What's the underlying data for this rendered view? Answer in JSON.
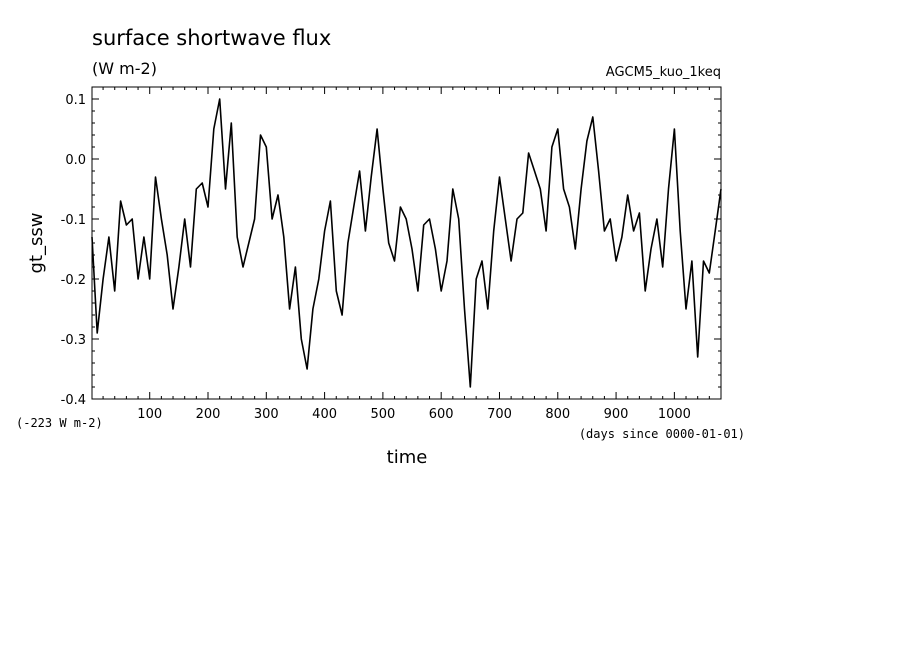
{
  "chart_data": {
    "type": "line",
    "title": "surface shortwave flux",
    "units_label": "(W m-2)",
    "dataset_label": "AGCM5_kuo_1keq",
    "offset_label": "(-223 W m-2)",
    "time_origin_label": "(days since 0000-01-01)",
    "xlabel": "time",
    "ylabel": "gt_ssw",
    "xlim": [
      1,
      1080
    ],
    "ylim": [
      -0.4,
      0.12
    ],
    "xticks": [
      100,
      200,
      300,
      400,
      500,
      600,
      700,
      800,
      900,
      1000
    ],
    "yticks": [
      -0.4,
      -0.3,
      -0.2,
      -0.1,
      0.0,
      0.1
    ],
    "ytick_labels": [
      "-0.4",
      "-0.3",
      "-0.2",
      "-0.1",
      "0.0",
      "0.1"
    ],
    "grid": false,
    "series": [
      {
        "color": "#000000",
        "x": [
          1,
          10,
          20,
          30,
          40,
          50,
          60,
          70,
          80,
          90,
          100,
          110,
          120,
          130,
          140,
          150,
          160,
          170,
          180,
          190,
          200,
          210,
          220,
          230,
          240,
          250,
          260,
          270,
          280,
          290,
          300,
          310,
          320,
          330,
          340,
          350,
          360,
          370,
          380,
          390,
          400,
          410,
          420,
          430,
          440,
          450,
          460,
          470,
          480,
          490,
          500,
          510,
          520,
          530,
          540,
          550,
          560,
          570,
          580,
          590,
          600,
          610,
          620,
          630,
          640,
          650,
          660,
          670,
          680,
          690,
          700,
          710,
          720,
          730,
          740,
          750,
          760,
          770,
          780,
          790,
          800,
          810,
          820,
          830,
          840,
          850,
          860,
          870,
          880,
          890,
          900,
          910,
          920,
          930,
          940,
          950,
          960,
          970,
          980,
          990,
          1000,
          1010,
          1020,
          1030,
          1040,
          1050,
          1060,
          1070,
          1080
        ],
        "y": [
          -0.13,
          -0.29,
          -0.2,
          -0.13,
          -0.22,
          -0.07,
          -0.11,
          -0.1,
          -0.2,
          -0.13,
          -0.2,
          -0.03,
          -0.1,
          -0.16,
          -0.25,
          -0.18,
          -0.1,
          -0.18,
          -0.05,
          -0.04,
          -0.08,
          0.05,
          0.1,
          -0.05,
          0.06,
          -0.13,
          -0.18,
          -0.14,
          -0.1,
          0.04,
          0.02,
          -0.1,
          -0.06,
          -0.13,
          -0.25,
          -0.18,
          -0.3,
          -0.35,
          -0.25,
          -0.2,
          -0.12,
          -0.07,
          -0.22,
          -0.26,
          -0.14,
          -0.08,
          -0.02,
          -0.12,
          -0.03,
          0.05,
          -0.05,
          -0.14,
          -0.17,
          -0.08,
          -0.1,
          -0.15,
          -0.22,
          -0.11,
          -0.1,
          -0.15,
          -0.22,
          -0.17,
          -0.05,
          -0.1,
          -0.25,
          -0.38,
          -0.2,
          -0.17,
          -0.25,
          -0.12,
          -0.03,
          -0.1,
          -0.17,
          -0.1,
          -0.09,
          0.01,
          -0.02,
          -0.05,
          -0.12,
          0.02,
          0.05,
          -0.05,
          -0.08,
          -0.15,
          -0.05,
          0.03,
          0.07,
          -0.02,
          -0.12,
          -0.1,
          -0.17,
          -0.13,
          -0.06,
          -0.12,
          -0.09,
          -0.22,
          -0.15,
          -0.1,
          -0.18,
          -0.05,
          0.05,
          -0.12,
          -0.25,
          -0.17,
          -0.33,
          -0.17,
          -0.19,
          -0.12,
          -0.05
        ]
      }
    ]
  }
}
